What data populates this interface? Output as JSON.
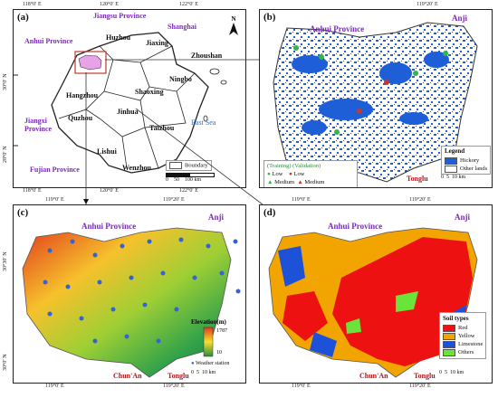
{
  "panels": {
    "a": {
      "label": "(a)",
      "cities": [
        "Huzhou",
        "Jiaxing",
        "Zhoushan",
        "Ningbo",
        "Hangzhou",
        "Shaoxing",
        "Quzhou",
        "Jinhua",
        "Taizhou",
        "Lishui",
        "Wenzhou"
      ],
      "provinces": [
        "Jiangsu Province",
        "Shanghai",
        "Anhui Province",
        "Jiangxi Province",
        "Fujian Province"
      ],
      "sea": "East Sea",
      "legend_boundary": "Boundary",
      "scale": [
        "0",
        "50",
        "100"
      ],
      "scale_unit": "km",
      "north": "N",
      "top_ticks": [
        "118°0′ E",
        "120°0′ E",
        "122°0′ E"
      ],
      "bottom_ticks": [
        "118°0′ E",
        "120°0′ E",
        "122°0′ E"
      ],
      "left_ticks": [
        "30°0′ N",
        "28°0′ N"
      ]
    },
    "b": {
      "label": "(b)",
      "places": [
        "Anhui Province",
        "Anji",
        "Tonglu"
      ],
      "legend_title": "Legend",
      "legend_items": [
        {
          "label": "Hickory",
          "color": "#1e5ed6"
        },
        {
          "label": "Other lands",
          "color": "#ffffff"
        }
      ],
      "training_title": "(Training)",
      "validation_title": "(Validation)",
      "training_items": [
        "Low",
        "Medium",
        "High"
      ],
      "validation_items": [
        "Low",
        "Medium",
        "High"
      ],
      "scale": [
        "0",
        "5",
        "10"
      ],
      "scale_unit": "km",
      "top_ticks": [
        "119°20′ E"
      ],
      "right_ticks": [
        "30°30′ N",
        "30°0′ N"
      ]
    },
    "c": {
      "label": "(c)",
      "places": [
        "Anhui Province",
        "Anji",
        "Chun'An",
        "Tonglu"
      ],
      "legend_title": "Elevation(m)",
      "elev_max": "1787",
      "elev_min": "10",
      "station_label": "Weather station",
      "scale": [
        "0",
        "5",
        "10"
      ],
      "scale_unit": "km",
      "top_ticks": [
        "119°0′ E",
        "119°20′ E"
      ],
      "bottom_ticks": [
        "119°0′ E",
        "119°20′ E"
      ],
      "left_ticks": [
        "30°30′ N",
        "30°0′ N"
      ]
    },
    "d": {
      "label": "(d)",
      "places": [
        "Anhui Province",
        "Anji",
        "Chun'An",
        "Tonglu"
      ],
      "legend_title": "Soil types",
      "legend_items": [
        {
          "label": "Red",
          "color": "#ee1111"
        },
        {
          "label": "Yellow",
          "color": "#f2a400"
        },
        {
          "label": "Limestone",
          "color": "#1d52d8"
        },
        {
          "label": "Others",
          "color": "#6be43a"
        }
      ],
      "scale": [
        "0",
        "5",
        "10"
      ],
      "scale_unit": "km",
      "top_ticks": [
        "119°0′ E",
        "119°20′ E"
      ],
      "bottom_ticks": [
        "119°0′ E",
        "119°20′ E"
      ],
      "right_ticks": [
        "30°30′ N",
        "30°0′ N"
      ]
    }
  }
}
